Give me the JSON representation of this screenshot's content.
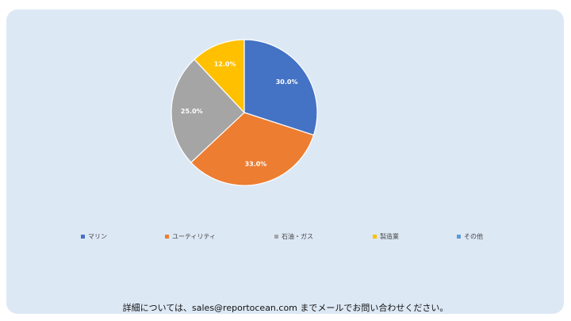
{
  "chart_data": {
    "type": "pie",
    "slices": [
      {
        "name": "マリン",
        "value": 30.0,
        "label": "30.0%",
        "color": "#4472c4"
      },
      {
        "name": "ユーティリティ",
        "value": 33.0,
        "label": "33.0%",
        "color": "#ed7d31"
      },
      {
        "name": "石油・ガス",
        "value": 25.0,
        "label": "25.0%",
        "color": "#a5a5a5"
      },
      {
        "name": "製造業",
        "value": 12.0,
        "label": "12.0%",
        "color": "#ffc000"
      },
      {
        "name": "その他",
        "value": 0.0,
        "label": "",
        "color": "#5b9bd5"
      }
    ],
    "legend_position": "bottom"
  },
  "footer": {
    "text": "詳細については、sales@reportocean.com までメールでお問い合わせください。"
  }
}
